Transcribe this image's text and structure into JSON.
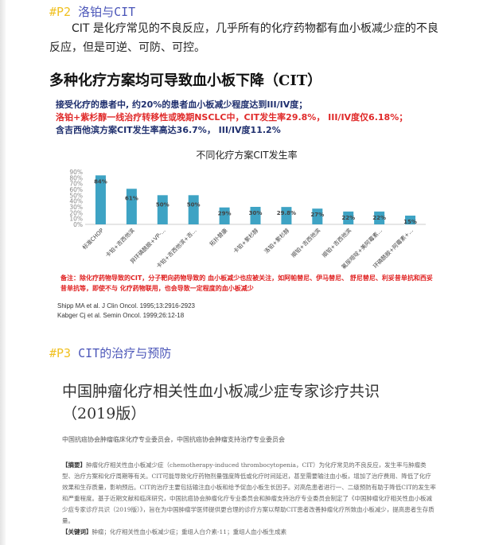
{
  "p2": {
    "num": "#P2",
    "title": "洛铂与CIT",
    "paragraph": "CIT 是化疗常见的不良反应，几乎所有的化疗药物都有血小板减少症的不良反应，但是可逆、可防、可控。",
    "heading": "多种化疗方案均可导致血小板下降（CIT）",
    "summary": [
      "接受化疗的患者中, 约20%的患者血小板减少程度达到III/IV度；",
      "洛铂+紫杉醇一线治疗转移性或晚期NSCLC中，CIT发生率29.8%， III/IV度仅6.18%；",
      "含吉西他滨方案CIT发生率高达36.7%， III/IV度11.2%"
    ],
    "note": "备注：除化疗药物导致的CIT，分子靶向药物导致的 血小板减少也应被关注，如阿帕替尼、伊马替尼、 舒尼替尼、利妥昔单抗和西妥昔单抗等，即使不与 化疗药物联用，也会导致一定程度的血小板减少",
    "refs": [
      "Shipp MA et al. J Clin Oncol. 1995;13:2916-2923",
      "Kabger Cj et al. Semin Oncol. 1999;26:12-18"
    ]
  },
  "chart_data": {
    "type": "bar",
    "title": "不同化疗方案CIT发生率",
    "categories": [
      "标准CHOP",
      "卡铂+吉西他滨",
      "异环磷酰胺+VP-...",
      "卡铂+吉西他滨+吉...",
      "拓扑替康",
      "卡铂+紫杉醇",
      "洛铂+紫杉醇",
      "顺铂+吉西他滨",
      "顺铂+吉西他滨",
      "氟尿嘧啶+美阿霉素...",
      "环磷酰胺+阿霉素+..."
    ],
    "values": [
      84,
      61,
      50,
      50,
      29,
      30,
      29.8,
      27,
      22,
      22,
      15
    ],
    "labels": [
      "84%",
      "61%",
      "50%",
      "50%",
      "29%",
      "30%",
      "29.8%",
      "27%",
      "22%",
      "22%",
      "15%"
    ],
    "yticks": [
      "0%",
      "10%",
      "20%",
      "30%",
      "40%",
      "50%",
      "60%",
      "70%",
      "80%",
      "90%"
    ],
    "ylim": [
      0,
      90
    ],
    "bar_color": "#3ea3c4",
    "grid": false
  },
  "p3": {
    "num": "#P3",
    "title": "CIT的治疗与预防",
    "paper_title": [
      "中国肿瘤化疗相关性血小板减少症专家诊疗共识",
      "（2019版）"
    ],
    "authors": "中国抗癌协会肿瘤临床化疗专业委员会，中国抗癌协会肿瘤支持治疗专业委员会",
    "abstract_label": "【摘要】",
    "abstract": "肿瘤化疗相关性血小板减少症（chemotherapy-induced thrombocytopenia，CIT）为化疗常见的不良反应，发生率与肿瘤类型、治疗方案和化疗周期等有关。CIT可能导致化疗药物剂量强度降低或化疗时间延迟，甚至需要输注血小板，增加了治疗费用、降低了化疗效果和生存质量，影响预后。CIT的治疗主要包括输注血小板和给予促血小板生长因子。对高危患者进行一、二级预防有助于降低CIT的发生率和严重程度。基于近期文献和临床研究，中国抗癌协会肿瘤化疗专业委员会和肿瘤支持治疗专业委员会制定了《中国肿瘤化疗相关性血小板减少症专家诊疗共识（2019版）》，旨在为中国肿瘤学医师提供更合理的诊疗方案以帮助CIT患者改善肿瘤化疗所致血小板减少，提高患者生存质量。",
    "keywords_label": "【关键词】",
    "keywords": "肿瘤；化疗相关性血小板减少症；重组人白介素-11；重组人血小板生成素"
  }
}
